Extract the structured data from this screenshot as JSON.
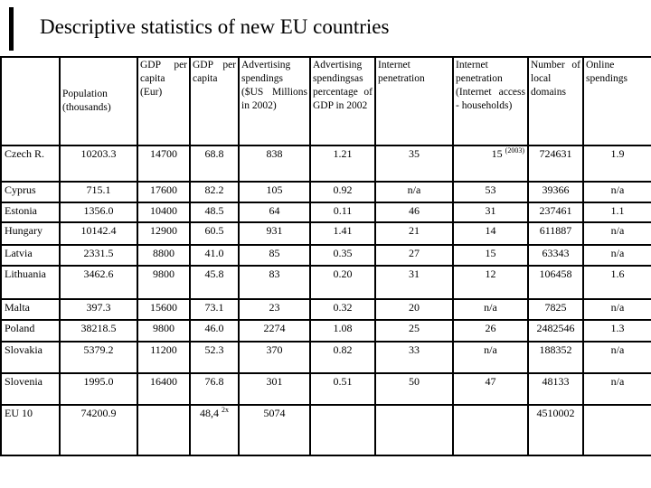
{
  "title": "Descriptive statistics of new EU countries",
  "table": {
    "columns": [
      {
        "label": ""
      },
      {
        "label": "Population (thousands)"
      },
      {
        "label": "GDP per capita (Eur)"
      },
      {
        "label": "GDP per capita"
      },
      {
        "label": "Advertising spendings ($US Millions in 2002)"
      },
      {
        "label": "Advertising spendingsas percentage of GDP in 2002"
      },
      {
        "label": "Internet penetration"
      },
      {
        "label": "Internet penetration (Internet access - households)"
      },
      {
        "label": "Number of local domains"
      },
      {
        "label": "Online spendings"
      }
    ],
    "rows": [
      {
        "country": "Czech R.",
        "cells": [
          "10203.3",
          "14700",
          "68.8",
          "838",
          "1.21",
          "35",
          {
            "text": "15 ",
            "sup": "(2003)",
            "align": "right"
          },
          "724631",
          "1.9"
        ]
      },
      {
        "country": "Cyprus",
        "cells": [
          "715.1",
          "17600",
          "82.2",
          "105",
          "0.92",
          "n/a",
          "53",
          "39366",
          "n/a"
        ]
      },
      {
        "country": "Estonia",
        "cells": [
          "1356.0",
          "10400",
          "48.5",
          "64",
          "0.11",
          "46",
          "31",
          "237461",
          "1.1"
        ]
      },
      {
        "country": "Hungary",
        "cells": [
          "10142.4",
          "12900",
          "60.5",
          "931",
          "1.41",
          "21",
          "14",
          "611887",
          "n/a"
        ]
      },
      {
        "country": "Latvia",
        "cells": [
          "2331.5",
          "8800",
          "41.0",
          "85",
          "0.35",
          "27",
          "15",
          "63343",
          "n/a"
        ]
      },
      {
        "country": "Lithuania",
        "cells": [
          "3462.6",
          "9800",
          "45.8",
          "83",
          "0.20",
          "31",
          "12",
          "106458",
          "1.6"
        ]
      },
      {
        "country": "Malta",
        "cells": [
          "397.3",
          "15600",
          "73.1",
          "23",
          "0.32",
          "20",
          "n/a",
          "7825",
          "n/a"
        ]
      },
      {
        "country": "Poland",
        "cells": [
          "38218.5",
          "9800",
          "46.0",
          "2274",
          "1.08",
          "25",
          "26",
          "2482546",
          "1.3"
        ]
      },
      {
        "country": "Slovakia",
        "cells": [
          "5379.2",
          "11200",
          "52.3",
          "370",
          "0.82",
          "33",
          "n/a",
          "188352",
          "n/a"
        ]
      },
      {
        "country": "Slovenia",
        "cells": [
          "1995.0",
          "16400",
          "76.8",
          "301",
          "0.51",
          "50",
          "47",
          "48133",
          "n/a"
        ]
      },
      {
        "country": "EU 10",
        "cells": [
          "74200.9",
          "",
          {
            "text": "48,4 ",
            "sup": "2x"
          },
          "5074",
          "",
          "",
          "",
          "4510002",
          ""
        ]
      }
    ]
  }
}
